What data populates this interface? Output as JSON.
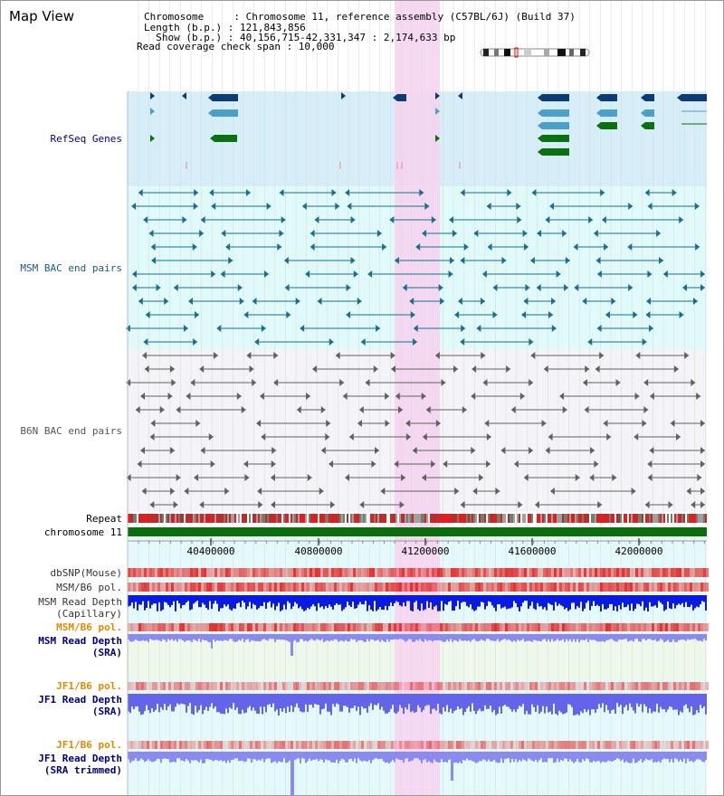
{
  "header": {
    "view_title": "Map View",
    "info_lines": [
      "Chromosome     : Chromosome 11, reference assembly (C57BL/6J) (Build 37)",
      "Length (b.p.) : 121,843,856",
      "  Show (b.p.) : 40,156,715-42,331,347 : 2,174,633 bp",
      "Read coverage check span : 10,000"
    ]
  },
  "colors": {
    "refseq_bg": "#d6eef8",
    "msm_bg": "#e0fafa",
    "b6n_bg": "#f4f4f8",
    "highlight": "#f6d4f0",
    "gene_dark": "#0d3b73",
    "gene_mid": "#4aa0c8",
    "gene_green": "#0a7010",
    "msm_pair": "#1a6e8e",
    "b6n_pair": "#606060",
    "chromosome": "#0a6e0a",
    "depth_dark": "#0a1ae0",
    "depth_light": "#8a8af0",
    "label_navy": "#00007a",
    "label_teal": "#1a5a82",
    "label_orange": "#e08a00"
  },
  "track_labels": {
    "refseq": "RefSeq Genes",
    "msm_bac": "MSM BAC end pairs",
    "b6n_bac": "B6N BAC end pairs",
    "repeat": "Repeat",
    "chromosome": "chromosome 11",
    "dbsnp": "dbSNP(Mouse)",
    "msm_b6_pol_1": "MSM/B6 pol.",
    "msm_depth_cap_1": "MSM Read Depth",
    "msm_depth_cap_2": "(Capillary)",
    "msm_b6_pol_2": "MSM/B6 pol.",
    "msm_depth_sra_1": "MSM Read Depth",
    "msm_depth_sra_2": "(SRA)",
    "jf1_b6_pol_1": "JF1/B6 pol.",
    "jf1_depth_sra_1": "JF1 Read Depth",
    "jf1_depth_sra_2": "(SRA)",
    "jf1_b6_pol_2": "JF1/B6 pol.",
    "jf1_depth_trim_1": "JF1 Read Depth",
    "jf1_depth_trim_2": "(SRA trimmed)"
  },
  "ruler": {
    "ticks": [
      "40400000",
      "40800000",
      "41200000",
      "41600000",
      "42000000"
    ]
  }
}
